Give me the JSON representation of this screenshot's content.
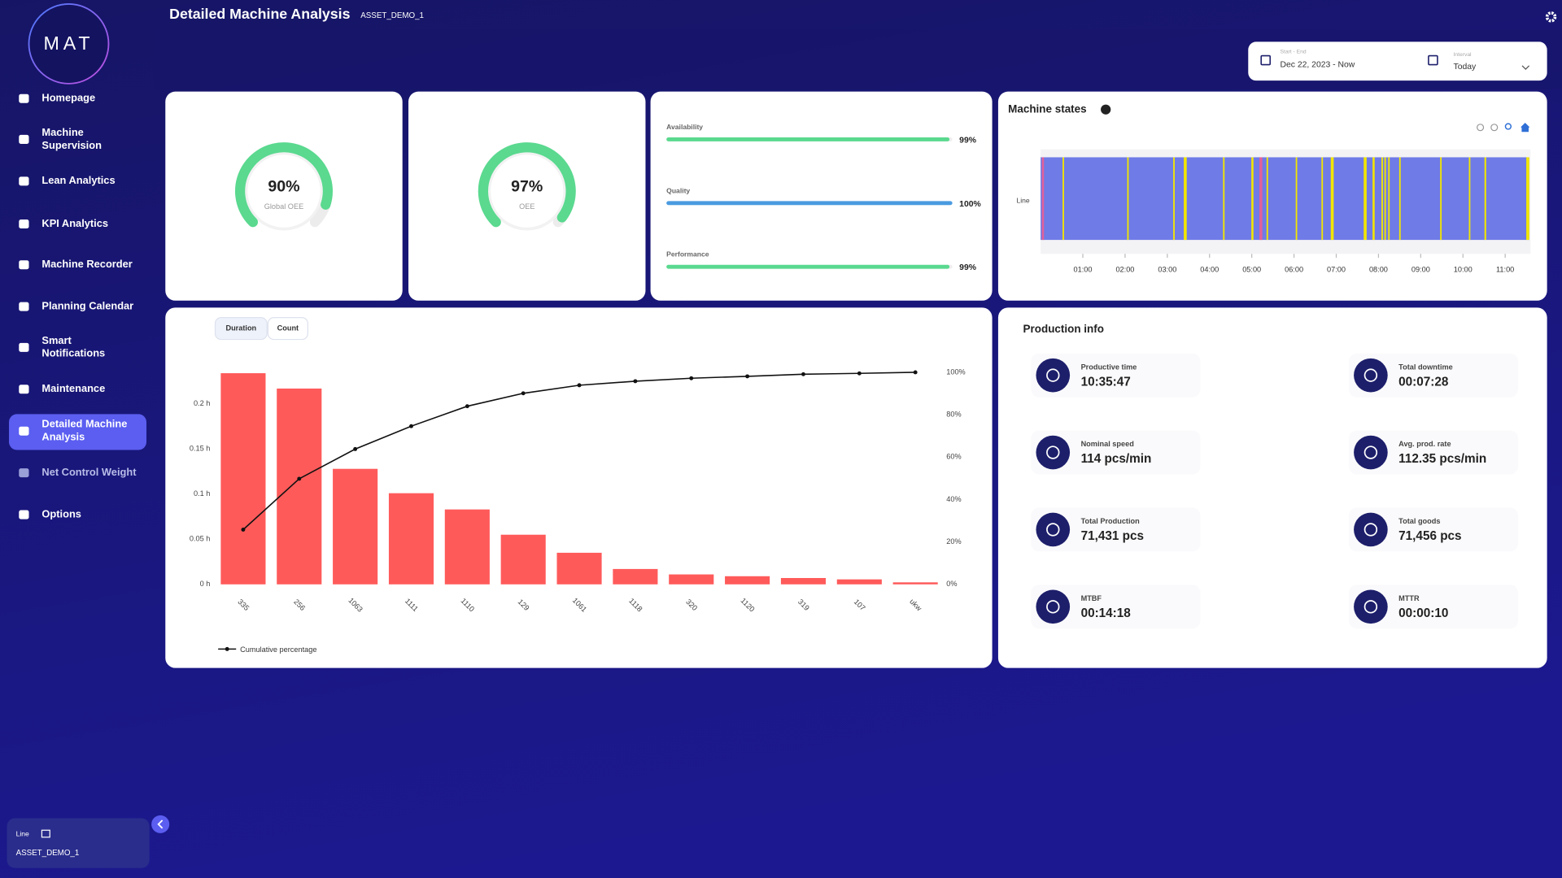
{
  "sidebar": {
    "logo": "MAT",
    "nav": [
      {
        "lines": [
          "Homepage"
        ]
      },
      {
        "lines": [
          "Machine",
          "Supervision"
        ]
      },
      {
        "lines": [
          "Lean Analytics"
        ]
      },
      {
        "lines": [
          "KPI Analytics"
        ]
      },
      {
        "lines": [
          "Machine Recorder"
        ]
      },
      {
        "lines": [
          "Planning Calendar"
        ]
      },
      {
        "lines": [
          "Smart",
          "Notifications"
        ]
      },
      {
        "lines": [
          "Maintenance"
        ]
      },
      {
        "lines": [
          "Detailed Machine",
          "Analysis"
        ]
      },
      {
        "lines": [
          "Net Control Weight"
        ]
      },
      {
        "lines": [
          "Options"
        ]
      }
    ],
    "line_label": "Line",
    "line_value": "ASSET_DEMO_1"
  },
  "header": {
    "title": "Detailed Machine Analysis",
    "asset": "ASSET_DEMO_1"
  },
  "date_filter": {
    "range_label": "Start - End",
    "range_value": "Dec 22, 2023 - Now",
    "interval_label": "Interval",
    "interval_value": "Today"
  },
  "gauges": [
    {
      "value": 90,
      "value_label": "90%",
      "label": "Global OEE"
    },
    {
      "value": 97,
      "value_label": "97%",
      "label": "OEE"
    }
  ],
  "oee_factors": [
    {
      "label": "Availability",
      "value": 99,
      "value_label": "99%",
      "color": "#5ad98f"
    },
    {
      "label": "Quality",
      "value": 100,
      "value_label": "100%",
      "color": "#4a9be0"
    },
    {
      "label": "Performance",
      "value": 99,
      "value_label": "99%",
      "color": "#5ad98f"
    }
  ],
  "chart_data": [
    {
      "type": "timeline",
      "title": "Machine states",
      "y_label": "Line",
      "xlim": [
        0,
        11.6
      ],
      "xticks": [
        {
          "value": 1,
          "label": "01:00"
        },
        {
          "value": 2,
          "label": "02:00"
        },
        {
          "value": 3,
          "label": "03:00"
        },
        {
          "value": 4,
          "label": "04:00"
        },
        {
          "value": 5,
          "label": "05:00"
        },
        {
          "value": 6,
          "label": "06:00"
        },
        {
          "value": 7,
          "label": "07:00"
        },
        {
          "value": 8,
          "label": "08:00"
        },
        {
          "value": 9,
          "label": "09:00"
        },
        {
          "value": 10,
          "label": "10:00"
        },
        {
          "value": 11,
          "label": "11:00"
        }
      ],
      "series": [
        {
          "color": "#6f7be6",
          "segments": [
            [
              0,
              11.57
            ]
          ]
        },
        {
          "color": "#f2e600",
          "segments": [
            [
              0.52,
              0.55
            ],
            [
              2.05,
              2.08
            ],
            [
              3.14,
              3.17
            ],
            [
              3.39,
              3.46
            ],
            [
              4.32,
              4.35
            ],
            [
              4.99,
              5.04
            ],
            [
              5.35,
              5.38
            ],
            [
              6.04,
              6.07
            ],
            [
              6.65,
              6.68
            ],
            [
              6.87,
              6.94
            ],
            [
              7.65,
              7.72
            ],
            [
              7.86,
              7.91
            ],
            [
              8.07,
              8.1
            ],
            [
              8.14,
              8.17
            ],
            [
              8.23,
              8.26
            ],
            [
              8.49,
              8.52
            ],
            [
              9.46,
              9.49
            ],
            [
              10.14,
              10.17
            ],
            [
              10.51,
              10.55
            ],
            [
              11.5,
              11.57
            ]
          ]
        },
        {
          "color": "#e0609a",
          "segments": [
            [
              0.03,
              0.08
            ],
            [
              5.18,
              5.25
            ]
          ]
        }
      ]
    },
    {
      "type": "pareto",
      "toggles": [
        "Duration",
        "Count"
      ],
      "categories": [
        "335",
        "256",
        "1063",
        "1111",
        "1110",
        "129",
        "1061",
        "1118",
        "320",
        "1120",
        "319",
        "107",
        "ukw"
      ],
      "ylim": [
        0,
        0.235
      ],
      "yticks": [
        {
          "value": 0,
          "label": "0 h"
        },
        {
          "value": 0.05,
          "label": "0.05 h"
        },
        {
          "value": 0.1,
          "label": "0.1 h"
        },
        {
          "value": 0.15,
          "label": "0.15 h"
        },
        {
          "value": 0.2,
          "label": "0.2 h"
        }
      ],
      "y2lim": [
        0,
        100
      ],
      "y2ticks": [
        {
          "value": 0,
          "label": "0%"
        },
        {
          "value": 20,
          "label": "20%"
        },
        {
          "value": 40,
          "label": "40%"
        },
        {
          "value": 60,
          "label": "60%"
        },
        {
          "value": 80,
          "label": "80%"
        },
        {
          "value": 100,
          "label": "100%"
        }
      ],
      "series": [
        {
          "color": "#ff5a5a",
          "values": [
            0.234,
            0.217,
            0.128,
            0.101,
            0.083,
            0.055,
            0.035,
            0.017,
            0.011,
            0.009,
            0.007,
            0.0055,
            0.0022
          ]
        },
        {
          "name": "Cumulative percentage",
          "axis": "y2",
          "color": "#111111",
          "values": [
            25.8,
            49.8,
            63.8,
            74.6,
            84.0,
            90.1,
            93.9,
            95.8,
            97.2,
            98.1,
            99.1,
            99.5,
            100
          ]
        }
      ]
    }
  ],
  "production_info": {
    "title": "Production info",
    "items": [
      {
        "label": "Productive time",
        "value": "10:35:47"
      },
      {
        "label": "Total downtime",
        "value": "00:07:28"
      },
      {
        "label": "Nominal speed",
        "value": "114 pcs/min"
      },
      {
        "label": "Avg. prod. rate",
        "value": "112.35 pcs/min"
      },
      {
        "label": "Total Production",
        "value": "71,431 pcs"
      },
      {
        "label": "Total goods",
        "value": "71,456 pcs"
      },
      {
        "label": "MTBF",
        "value": "00:14:18"
      },
      {
        "label": "MTTR",
        "value": "00:00:10"
      }
    ]
  }
}
